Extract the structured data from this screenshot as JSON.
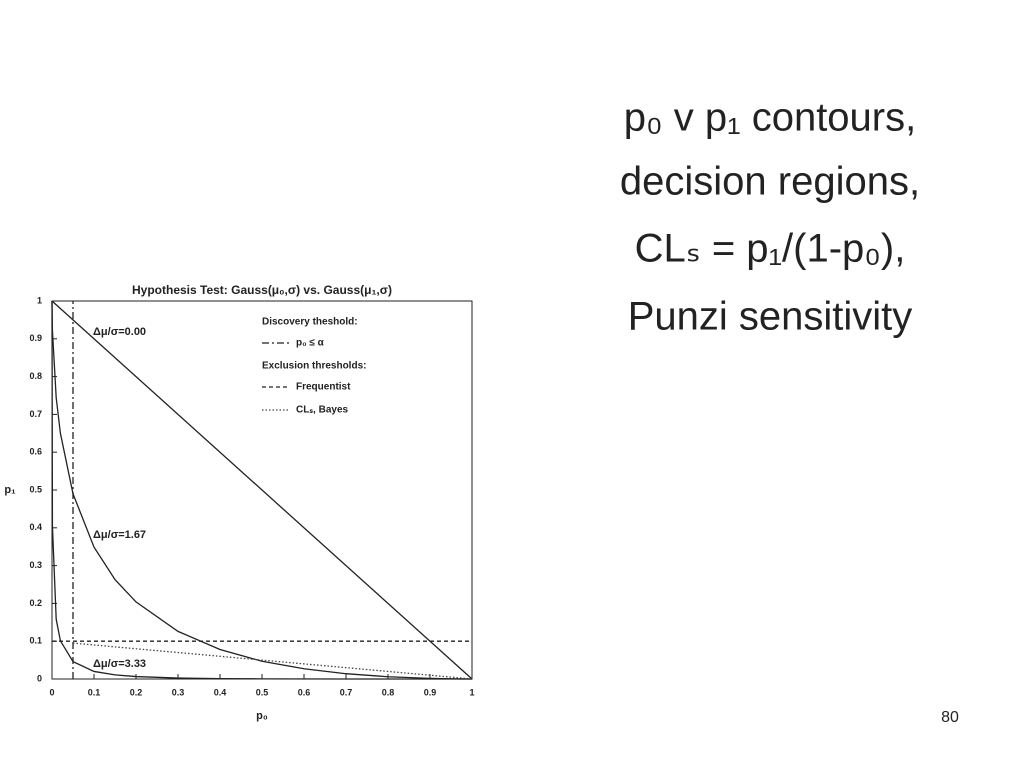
{
  "slide": {
    "title_lines": [
      "p₀ v p₁ contours,",
      "decision regions,",
      "CLₛ = p₁/(1-p₀),",
      "Punzi sensitivity"
    ],
    "page_number": "80"
  },
  "chart_data": {
    "type": "line",
    "title": "Hypothesis Test: Gauss(μ₀,σ) vs. Gauss(μ₁,σ)",
    "x_label": "p₀",
    "y_label": "p₁",
    "xlim": [
      0,
      1
    ],
    "ylim": [
      0,
      1
    ],
    "xticks": [
      0,
      0.1,
      0.2,
      0.3,
      0.4,
      0.5,
      0.6,
      0.7,
      0.8,
      0.9,
      1
    ],
    "yticks": [
      0,
      0.1,
      0.2,
      0.3,
      0.4,
      0.5,
      0.6,
      0.7,
      0.8,
      0.9,
      1
    ],
    "series": [
      {
        "name": "Δμ/σ=0.00",
        "color": "#222222",
        "x": [
          0,
          1
        ],
        "values": [
          1,
          0
        ]
      },
      {
        "name": "Δμ/σ=1.67",
        "color": "#222222",
        "x": [
          0,
          0.001,
          0.01,
          0.02,
          0.05,
          0.1,
          0.15,
          0.2,
          0.3,
          0.4,
          0.5,
          0.6,
          0.7,
          0.8,
          0.9,
          0.95,
          0.99,
          1
        ],
        "values": [
          1,
          0.922,
          0.744,
          0.65,
          0.49,
          0.349,
          0.263,
          0.204,
          0.126,
          0.078,
          0.047,
          0.027,
          0.014,
          0.006,
          0.0016,
          0.0005,
          3e-05,
          0
        ]
      },
      {
        "name": "Δμ/σ=3.33",
        "color": "#222222",
        "x": [
          0,
          0.001,
          0.01,
          0.02,
          0.05,
          0.1,
          0.15,
          0.2,
          0.3,
          0.4,
          0.5,
          0.7,
          1
        ],
        "values": [
          1,
          0.405,
          0.158,
          0.101,
          0.046,
          0.02,
          0.011,
          0.0064,
          0.0025,
          0.001,
          0.0004,
          5e-05,
          0
        ]
      }
    ],
    "legend_groups": [
      {
        "heading": "Discovery theshold:",
        "series": [
          {
            "name": "p₀ ≤ α",
            "color": "#222222",
            "dash": "dash-dot",
            "x": [
              0.05,
              0.05
            ],
            "values": [
              0,
              1
            ]
          }
        ]
      },
      {
        "heading": "Exclusion thresholds:",
        "series": [
          {
            "name": "Frequentist",
            "color": "#222222",
            "dash": "dashed",
            "x": [
              0,
              1
            ],
            "values": [
              0.1,
              0.1
            ]
          },
          {
            "name": "CLₛ, Bayes",
            "color": "#444444",
            "dash": "dotted",
            "x": [
              0.05,
              1
            ],
            "values": [
              0.095,
              0
            ]
          }
        ]
      }
    ]
  }
}
